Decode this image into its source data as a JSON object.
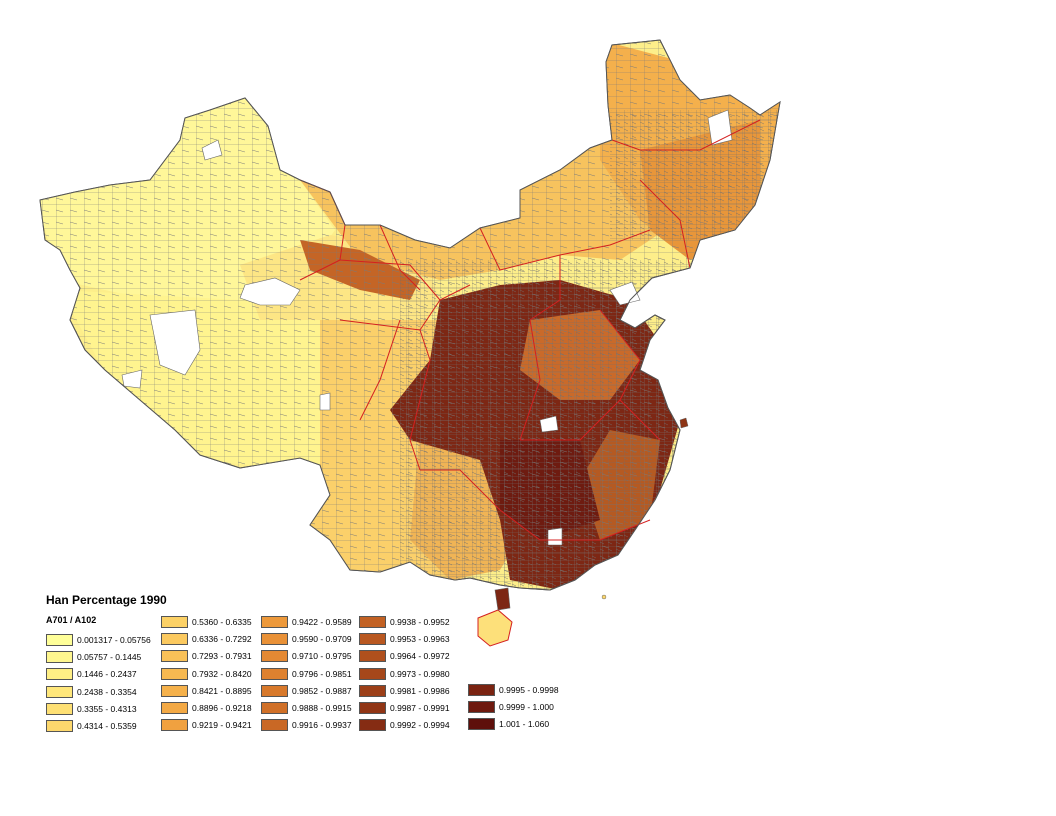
{
  "legend": {
    "title": "Han Percentage 1990",
    "field": "A701 / A102",
    "columns": [
      [
        {
          "label": "0.001317 - 0.05756",
          "color": "#ffff99"
        },
        {
          "label": "0.05757 - 0.1445",
          "color": "#fff78f"
        },
        {
          "label": "0.1446 - 0.2437",
          "color": "#ffef85"
        },
        {
          "label": "0.2438 - 0.3354",
          "color": "#ffe77b"
        },
        {
          "label": "0.3355 - 0.4313",
          "color": "#fee074"
        },
        {
          "label": "0.4314 - 0.5359",
          "color": "#fdd86d"
        }
      ],
      [
        {
          "label": "0.5360 - 0.6335",
          "color": "#fcd166"
        },
        {
          "label": "0.6336 - 0.7292",
          "color": "#fbc95f"
        },
        {
          "label": "0.7293 - 0.7931",
          "color": "#f9c158"
        },
        {
          "label": "0.7932 - 0.8420",
          "color": "#f7b951"
        },
        {
          "label": "0.8421 - 0.8895",
          "color": "#f5b14b"
        },
        {
          "label": "0.8896 - 0.9218",
          "color": "#f3a945"
        },
        {
          "label": "0.9219 - 0.9421",
          "color": "#f0a140"
        }
      ],
      [
        {
          "label": "0.9422 - 0.9589",
          "color": "#ed993b"
        },
        {
          "label": "0.9590 - 0.9709",
          "color": "#e99137"
        },
        {
          "label": "0.9710 - 0.9795",
          "color": "#e48933"
        },
        {
          "label": "0.9796 - 0.9851",
          "color": "#de812f"
        },
        {
          "label": "0.9852 - 0.9887",
          "color": "#d8792b"
        },
        {
          "label": "0.9888 - 0.9915",
          "color": "#d07028"
        },
        {
          "label": "0.9916 - 0.9937",
          "color": "#c96825"
        }
      ],
      [
        {
          "label": "0.9938 - 0.9952",
          "color": "#c26123"
        },
        {
          "label": "0.9953 - 0.9963",
          "color": "#b95820"
        },
        {
          "label": "0.9964 - 0.9972",
          "color": "#b0501d"
        },
        {
          "label": "0.9973 - 0.9980",
          "color": "#a6471a"
        },
        {
          "label": "0.9981 - 0.9986",
          "color": "#9c3f18"
        },
        {
          "label": "0.9987 - 0.9991",
          "color": "#903515"
        },
        {
          "label": "0.9992 - 0.9994",
          "color": "#852c13"
        }
      ],
      [
        {
          "label": "0.9995 - 0.9998",
          "color": "#7a2311"
        },
        {
          "label": "0.9999 - 1.000",
          "color": "#6e1a0f"
        },
        {
          "label": "1.001 - 1.060",
          "color": "#5e0f0b"
        }
      ]
    ]
  }
}
